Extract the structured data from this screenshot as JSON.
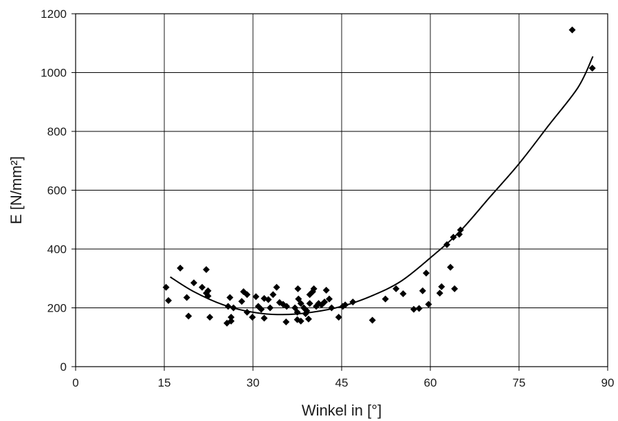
{
  "chart_data": {
    "type": "scatter",
    "title": "",
    "xlabel": "Winkel in [°]",
    "ylabel": "E [N/mm²]",
    "xlim": [
      0,
      90
    ],
    "ylim": [
      0,
      1200
    ],
    "xticks": [
      0,
      15,
      30,
      45,
      60,
      75,
      90
    ],
    "yticks": [
      0,
      200,
      400,
      600,
      800,
      1000,
      1200
    ],
    "grid": true,
    "legend": "none",
    "colors": {
      "points": "#000000",
      "trendline": "#000000",
      "grid": "#000000"
    },
    "series": [
      {
        "kind": "points",
        "marker": "diamond",
        "points": [
          [
            15.3,
            270
          ],
          [
            15.7,
            225
          ],
          [
            17.7,
            335
          ],
          [
            18.8,
            235
          ],
          [
            19.1,
            172
          ],
          [
            20.0,
            285
          ],
          [
            21.4,
            270
          ],
          [
            22.1,
            330
          ],
          [
            22.1,
            250
          ],
          [
            22.4,
            258
          ],
          [
            22.4,
            240
          ],
          [
            22.7,
            168
          ],
          [
            25.6,
            148
          ],
          [
            25.8,
            205
          ],
          [
            26.1,
            235
          ],
          [
            26.3,
            155
          ],
          [
            26.3,
            168
          ],
          [
            26.7,
            200
          ],
          [
            28.1,
            222
          ],
          [
            28.4,
            255
          ],
          [
            29.0,
            245
          ],
          [
            29.0,
            185
          ],
          [
            29.9,
            168
          ],
          [
            30.5,
            238
          ],
          [
            30.9,
            205
          ],
          [
            31.4,
            195
          ],
          [
            31.9,
            232
          ],
          [
            31.9,
            165
          ],
          [
            32.6,
            228
          ],
          [
            32.9,
            200
          ],
          [
            33.4,
            245
          ],
          [
            34.0,
            270
          ],
          [
            34.5,
            218
          ],
          [
            35.1,
            212
          ],
          [
            35.6,
            152
          ],
          [
            35.7,
            205
          ],
          [
            37.1,
            200
          ],
          [
            37.5,
            160
          ],
          [
            37.5,
            185
          ],
          [
            37.6,
            265
          ],
          [
            37.7,
            230
          ],
          [
            38.1,
            155
          ],
          [
            38.1,
            215
          ],
          [
            38.6,
            200
          ],
          [
            38.9,
            180
          ],
          [
            39.1,
            190
          ],
          [
            39.4,
            162
          ],
          [
            39.6,
            245
          ],
          [
            39.6,
            215
          ],
          [
            40.1,
            255
          ],
          [
            40.3,
            265
          ],
          [
            40.7,
            205
          ],
          [
            41.1,
            215
          ],
          [
            41.6,
            210
          ],
          [
            42.1,
            220
          ],
          [
            42.4,
            260
          ],
          [
            42.9,
            230
          ],
          [
            43.3,
            200
          ],
          [
            44.5,
            168
          ],
          [
            45.2,
            205
          ],
          [
            45.6,
            210
          ],
          [
            46.9,
            220
          ],
          [
            50.2,
            158
          ],
          [
            52.4,
            230
          ],
          [
            54.2,
            265
          ],
          [
            55.4,
            248
          ],
          [
            57.2,
            195
          ],
          [
            58.1,
            198
          ],
          [
            58.7,
            258
          ],
          [
            59.3,
            318
          ],
          [
            59.7,
            212
          ],
          [
            61.6,
            250
          ],
          [
            61.9,
            272
          ],
          [
            62.8,
            415
          ],
          [
            63.4,
            338
          ],
          [
            63.9,
            440
          ],
          [
            64.1,
            265
          ],
          [
            64.9,
            450
          ],
          [
            65.1,
            465
          ],
          [
            84.0,
            1145
          ],
          [
            87.4,
            1015
          ]
        ]
      },
      {
        "kind": "trendline",
        "points": [
          [
            16,
            305
          ],
          [
            20,
            255
          ],
          [
            25,
            210
          ],
          [
            30,
            185
          ],
          [
            35,
            177
          ],
          [
            40,
            185
          ],
          [
            45,
            205
          ],
          [
            50,
            240
          ],
          [
            55,
            290
          ],
          [
            60,
            370
          ],
          [
            65,
            460
          ],
          [
            70,
            575
          ],
          [
            75,
            690
          ],
          [
            80,
            820
          ],
          [
            85,
            950
          ],
          [
            87.5,
            1055
          ]
        ]
      }
    ]
  }
}
